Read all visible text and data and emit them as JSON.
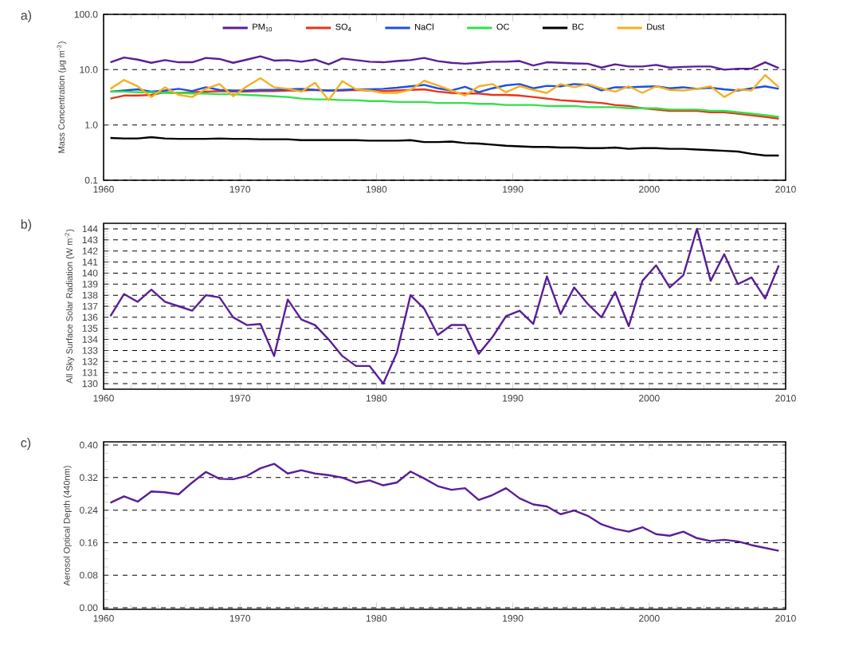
{
  "chart_data": [
    {
      "type": "line",
      "title": "a)",
      "ylabel": "Mass Concentration (μg m$^{-3}$)",
      "log": "y",
      "grid": "y",
      "legend": "top",
      "x": [
        1960.5,
        1961.5,
        1962.5,
        1963.5,
        1964.5,
        1965.5,
        1966.5,
        1967.5,
        1968.5,
        1969.5,
        1970.5,
        1971.5,
        1972.5,
        1973.5,
        1974.5,
        1975.5,
        1976.5,
        1977.5,
        1978.5,
        1979.5,
        1980.5,
        1981.5,
        1982.5,
        1983.5,
        1984.5,
        1985.5,
        1986.5,
        1987.5,
        1988.5,
        1989.5,
        1990.5,
        1991.5,
        1992.5,
        1993.5,
        1994.5,
        1995.5,
        1996.5,
        1997.5,
        1998.5,
        1999.5,
        2000.5,
        2001.5,
        2002.5,
        2003.5,
        2004.5,
        2005.5,
        2006.5,
        2007.5,
        2008.5,
        2009.5
      ],
      "xlim": [
        1960,
        2010
      ],
      "xticks": [
        1960,
        1970,
        1980,
        1990,
        2000,
        2010
      ],
      "ylim": [
        0.1,
        100
      ],
      "yticks": [
        {
          "value": 0.1,
          "label": "0.1"
        },
        {
          "value": 1,
          "label": "1.0"
        },
        {
          "value": 10,
          "label": "10.0"
        },
        {
          "value": 100,
          "label": "100.0"
        }
      ],
      "series": [
        {
          "name": "PM$_{10}$",
          "color": "#5a1e96",
          "values": [
            13.6,
            16.6,
            15.2,
            13.3,
            14.9,
            13.6,
            13.6,
            16.3,
            15.6,
            13.3,
            15.2,
            17.4,
            14.6,
            14.9,
            13.9,
            15.2,
            12.5,
            15.9,
            14.9,
            13.9,
            13.6,
            14.3,
            14.9,
            16.3,
            14.3,
            13.3,
            12.8,
            13.3,
            13.9,
            13.9,
            14.3,
            11.9,
            13.6,
            13.3,
            13.0,
            12.8,
            10.9,
            12.5,
            11.4,
            11.4,
            12.2,
            10.9,
            11.2,
            11.4,
            11.4,
            10.0,
            10.4,
            10.4,
            13.6,
            10.7
          ]
        },
        {
          "name": "SO$_{4}$",
          "color": "#e8341c",
          "values": [
            3.0,
            3.4,
            3.4,
            3.5,
            3.9,
            3.8,
            3.9,
            4.0,
            4.1,
            4.0,
            4.0,
            4.1,
            4.1,
            4.2,
            4.2,
            4.3,
            4.2,
            4.2,
            4.3,
            4.2,
            4.1,
            4.2,
            4.3,
            4.4,
            4.0,
            3.8,
            3.7,
            3.7,
            3.5,
            3.5,
            3.4,
            3.2,
            3.0,
            2.8,
            2.7,
            2.6,
            2.5,
            2.3,
            2.2,
            2.0,
            1.9,
            1.8,
            1.8,
            1.8,
            1.7,
            1.7,
            1.6,
            1.5,
            1.4,
            1.3
          ]
        },
        {
          "name": "NaCl",
          "color": "#1f4fe0",
          "values": [
            4.0,
            4.2,
            4.4,
            4.0,
            4.2,
            4.5,
            4.1,
            4.8,
            4.3,
            4.2,
            4.2,
            4.3,
            4.3,
            4.4,
            4.5,
            4.3,
            4.2,
            4.3,
            4.4,
            4.4,
            4.5,
            4.7,
            5.0,
            5.3,
            4.6,
            4.2,
            4.9,
            3.9,
            4.6,
            5.2,
            5.5,
            4.6,
            5.1,
            5.0,
            5.5,
            5.3,
            4.2,
            4.8,
            4.8,
            4.9,
            5.0,
            4.6,
            4.8,
            4.5,
            4.7,
            4.4,
            4.2,
            4.6,
            5.0,
            4.5
          ]
        },
        {
          "name": "OC",
          "color": "#33e04d",
          "values": [
            4.0,
            4.0,
            3.9,
            3.9,
            3.8,
            3.8,
            3.7,
            3.7,
            3.6,
            3.6,
            3.5,
            3.4,
            3.3,
            3.2,
            3.0,
            2.9,
            2.9,
            2.8,
            2.8,
            2.7,
            2.7,
            2.6,
            2.6,
            2.6,
            2.5,
            2.5,
            2.5,
            2.4,
            2.4,
            2.3,
            2.3,
            2.3,
            2.2,
            2.2,
            2.2,
            2.1,
            2.1,
            2.1,
            2.0,
            2.0,
            2.0,
            1.9,
            1.9,
            1.9,
            1.8,
            1.8,
            1.7,
            1.6,
            1.5,
            1.4
          ]
        },
        {
          "name": "BC",
          "color": "#000000",
          "values": [
            0.58,
            0.57,
            0.57,
            0.6,
            0.57,
            0.56,
            0.56,
            0.56,
            0.57,
            0.56,
            0.56,
            0.55,
            0.55,
            0.55,
            0.53,
            0.53,
            0.53,
            0.53,
            0.53,
            0.52,
            0.52,
            0.52,
            0.53,
            0.49,
            0.49,
            0.5,
            0.47,
            0.46,
            0.44,
            0.42,
            0.41,
            0.4,
            0.4,
            0.39,
            0.39,
            0.38,
            0.38,
            0.39,
            0.37,
            0.38,
            0.38,
            0.37,
            0.37,
            0.36,
            0.35,
            0.34,
            0.33,
            0.3,
            0.28,
            0.28
          ]
        },
        {
          "name": "Dust",
          "color": "#f5b021",
          "values": [
            4.5,
            6.5,
            5.0,
            3.2,
            4.8,
            3.5,
            3.2,
            4.5,
            5.5,
            3.3,
            5.0,
            7.0,
            4.8,
            4.5,
            4.0,
            5.8,
            2.8,
            6.2,
            4.4,
            4.2,
            3.8,
            3.8,
            4.3,
            6.3,
            5.2,
            4.2,
            3.4,
            5.0,
            5.5,
            3.9,
            5.0,
            4.3,
            3.8,
            5.5,
            4.8,
            5.5,
            4.6,
            4.0,
            5.0,
            3.8,
            5.0,
            4.3,
            4.2,
            4.5,
            5.0,
            3.2,
            4.4,
            4.2,
            8.0,
            4.8
          ]
        }
      ]
    },
    {
      "type": "line",
      "title": "b)",
      "ylabel": "All Sky Surface Solar Radiation (W m$^{-2}$)",
      "grid": "y",
      "x": [
        1960.5,
        1961.5,
        1962.5,
        1963.5,
        1964.5,
        1965.5,
        1966.5,
        1967.5,
        1968.5,
        1969.5,
        1970.5,
        1971.5,
        1972.5,
        1973.5,
        1974.5,
        1975.5,
        1976.5,
        1977.5,
        1978.5,
        1979.5,
        1980.5,
        1981.5,
        1982.5,
        1983.5,
        1984.5,
        1985.5,
        1986.5,
        1987.5,
        1988.5,
        1989.5,
        1990.5,
        1991.5,
        1992.5,
        1993.5,
        1994.5,
        1995.5,
        1996.5,
        1997.5,
        1998.5,
        1999.5,
        2000.5,
        2001.5,
        2002.5,
        2003.5,
        2004.5,
        2005.5,
        2006.5,
        2007.5,
        2008.5,
        2009.5
      ],
      "xlim": [
        1960,
        2010
      ],
      "xticks": [
        1960,
        1970,
        1980,
        1990,
        2000,
        2010
      ],
      "ylim": [
        129.5,
        144.5
      ],
      "yticks": [
        130,
        131,
        132,
        133,
        134,
        135,
        136,
        137,
        138,
        139,
        140,
        141,
        142,
        143,
        144
      ],
      "series": [
        {
          "color": "#5a1e96",
          "values": [
            136.1,
            138.1,
            137.4,
            138.5,
            137.4,
            137.0,
            136.6,
            138.0,
            137.8,
            136.0,
            135.3,
            135.4,
            132.5,
            137.6,
            135.8,
            135.3,
            134.0,
            132.5,
            131.6,
            131.6,
            130.0,
            132.8,
            138.0,
            136.8,
            134.4,
            135.3,
            135.3,
            132.7,
            134.2,
            136.1,
            136.6,
            135.4,
            139.7,
            136.3,
            138.7,
            137.2,
            136.0,
            138.3,
            135.2,
            139.3,
            140.7,
            138.7,
            139.8,
            144.0,
            139.3,
            141.7,
            139.0,
            139.6,
            137.7,
            140.7
          ]
        }
      ]
    },
    {
      "type": "line",
      "title": "c)",
      "ylabel": "Aerosol Optical Depth (440nm)",
      "grid": "y",
      "x": [
        1960.5,
        1961.5,
        1962.5,
        1963.5,
        1964.5,
        1965.5,
        1966.5,
        1967.5,
        1968.5,
        1969.5,
        1970.5,
        1971.5,
        1972.5,
        1973.5,
        1974.5,
        1975.5,
        1976.5,
        1977.5,
        1978.5,
        1979.5,
        1980.5,
        1981.5,
        1982.5,
        1983.5,
        1984.5,
        1985.5,
        1986.5,
        1987.5,
        1988.5,
        1989.5,
        1990.5,
        1991.5,
        1992.5,
        1993.5,
        1994.5,
        1995.5,
        1996.5,
        1997.5,
        1998.5,
        1999.5,
        2000.5,
        2001.5,
        2002.5,
        2003.5,
        2004.5,
        2005.5,
        2006.5,
        2007.5,
        2008.5,
        2009.5
      ],
      "xlim": [
        1960,
        2010
      ],
      "xticks": [
        1960,
        1970,
        1980,
        1990,
        2000,
        2010
      ],
      "ylim": [
        -0.004,
        0.408
      ],
      "yticks": [
        {
          "value": 0,
          "label": "0.00"
        },
        {
          "value": 0.08,
          "label": "0.08"
        },
        {
          "value": 0.16,
          "label": "0.16"
        },
        {
          "value": 0.24,
          "label": "0.24"
        },
        {
          "value": 0.32,
          "label": "0.32"
        },
        {
          "value": 0.4,
          "label": "0.40"
        }
      ],
      "series": [
        {
          "color": "#5a1e96",
          "values": [
            0.258,
            0.274,
            0.261,
            0.286,
            0.284,
            0.279,
            0.308,
            0.334,
            0.317,
            0.316,
            0.324,
            0.343,
            0.354,
            0.33,
            0.338,
            0.33,
            0.326,
            0.32,
            0.307,
            0.313,
            0.301,
            0.308,
            0.335,
            0.318,
            0.299,
            0.29,
            0.294,
            0.265,
            0.277,
            0.294,
            0.269,
            0.254,
            0.249,
            0.23,
            0.239,
            0.226,
            0.205,
            0.194,
            0.187,
            0.198,
            0.181,
            0.177,
            0.187,
            0.171,
            0.164,
            0.167,
            0.163,
            0.154,
            0.147,
            0.14
          ]
        }
      ]
    }
  ]
}
